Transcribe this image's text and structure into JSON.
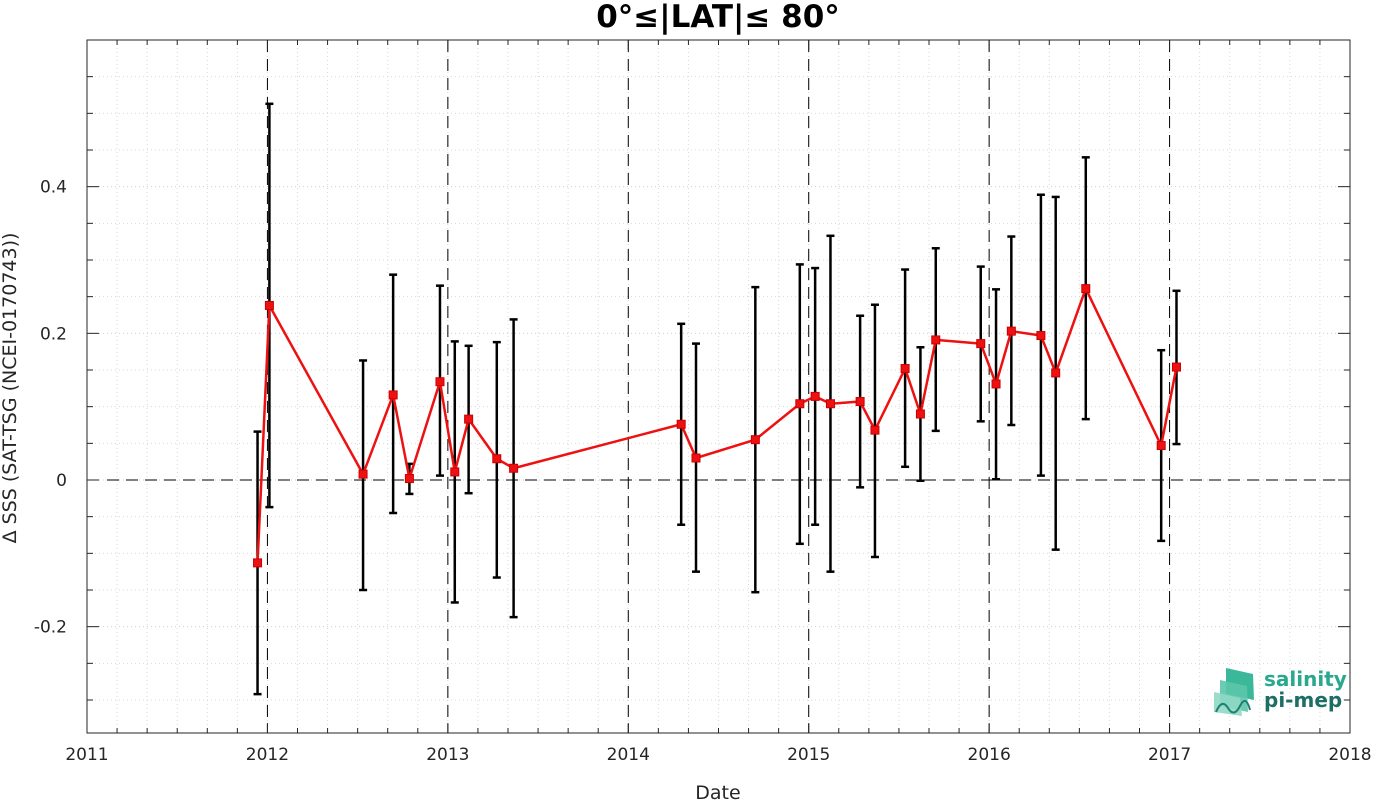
{
  "chart_data": {
    "type": "line",
    "title": "0°≤|LAT|≤ 80°",
    "xlabel": "Date",
    "ylabel": "Δ SSS (SAT-TSG (NCEI-0170743))",
    "xlim": [
      2011,
      2018
    ],
    "ylim": [
      -0.345,
      0.6
    ],
    "xticks": [
      "2011",
      "2012",
      "2013",
      "2014",
      "2015",
      "2016",
      "2017",
      "2018"
    ],
    "yticks": [
      -0.2,
      0,
      0.2,
      0.4
    ],
    "ytick_labels": [
      "-0.2",
      "0",
      "0.2",
      "0.4"
    ],
    "grid": true,
    "minor_grid": true,
    "year_boundaries": [
      "2012",
      "2013",
      "2014",
      "2015",
      "2016",
      "2017"
    ],
    "zero_reference_line": 0,
    "series": [
      {
        "color": "#ee1111",
        "marker": "square",
        "error_bars": true,
        "error_bar_color": "#000000",
        "points": [
          {
            "x": "2011-12-12",
            "y": -0.113,
            "lo": -0.292,
            "hi": 0.066
          },
          {
            "x": "2012-01-05",
            "y": 0.238,
            "lo": -0.037,
            "hi": 0.513
          },
          {
            "x": "2012-07-13",
            "y": 0.008,
            "lo": -0.15,
            "hi": 0.163
          },
          {
            "x": "2012-09-12",
            "y": 0.116,
            "lo": -0.045,
            "hi": 0.28
          },
          {
            "x": "2012-10-15",
            "y": 0.002,
            "lo": -0.019,
            "hi": 0.022
          },
          {
            "x": "2012-12-16",
            "y": 0.134,
            "lo": 0.006,
            "hi": 0.265
          },
          {
            "x": "2013-01-15",
            "y": 0.011,
            "lo": -0.167,
            "hi": 0.189
          },
          {
            "x": "2013-02-12",
            "y": 0.083,
            "lo": -0.018,
            "hi": 0.183
          },
          {
            "x": "2013-04-10",
            "y": 0.029,
            "lo": -0.133,
            "hi": 0.188
          },
          {
            "x": "2013-05-14",
            "y": 0.016,
            "lo": -0.187,
            "hi": 0.219
          },
          {
            "x": "2014-04-18",
            "y": 0.076,
            "lo": -0.061,
            "hi": 0.213
          },
          {
            "x": "2014-05-18",
            "y": 0.03,
            "lo": -0.125,
            "hi": 0.186
          },
          {
            "x": "2014-09-15",
            "y": 0.055,
            "lo": -0.153,
            "hi": 0.263
          },
          {
            "x": "2014-12-14",
            "y": 0.104,
            "lo": -0.087,
            "hi": 0.294
          },
          {
            "x": "2015-01-14",
            "y": 0.114,
            "lo": -0.061,
            "hi": 0.289
          },
          {
            "x": "2015-02-14",
            "y": 0.104,
            "lo": -0.125,
            "hi": 0.333
          },
          {
            "x": "2015-04-15",
            "y": 0.107,
            "lo": -0.01,
            "hi": 0.224
          },
          {
            "x": "2015-05-15",
            "y": 0.068,
            "lo": -0.105,
            "hi": 0.239
          },
          {
            "x": "2015-07-15",
            "y": 0.152,
            "lo": 0.018,
            "hi": 0.287
          },
          {
            "x": "2015-08-15",
            "y": 0.09,
            "lo": -0.001,
            "hi": 0.181
          },
          {
            "x": "2015-09-15",
            "y": 0.191,
            "lo": 0.067,
            "hi": 0.316
          },
          {
            "x": "2015-12-15",
            "y": 0.186,
            "lo": 0.08,
            "hi": 0.291
          },
          {
            "x": "2016-01-15",
            "y": 0.131,
            "lo": 0.001,
            "hi": 0.26
          },
          {
            "x": "2016-02-15",
            "y": 0.203,
            "lo": 0.075,
            "hi": 0.332
          },
          {
            "x": "2016-04-15",
            "y": 0.197,
            "lo": 0.006,
            "hi": 0.389
          },
          {
            "x": "2016-05-15",
            "y": 0.146,
            "lo": -0.095,
            "hi": 0.386
          },
          {
            "x": "2016-07-15",
            "y": 0.261,
            "lo": 0.083,
            "hi": 0.44
          },
          {
            "x": "2016-12-15",
            "y": 0.047,
            "lo": -0.083,
            "hi": 0.177
          },
          {
            "x": "2017-01-15",
            "y": 0.154,
            "lo": 0.049,
            "hi": 0.258
          }
        ]
      }
    ]
  },
  "logo": {
    "line1": "salinity",
    "line2": "pi-mep",
    "color_primary": "#2aa88f",
    "color_secondary": "#1d6f66"
  }
}
